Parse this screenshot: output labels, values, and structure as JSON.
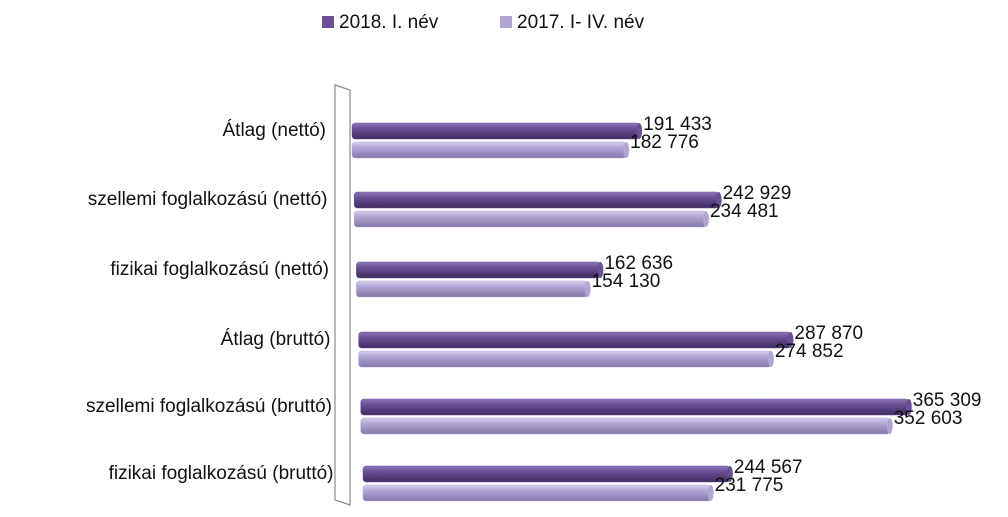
{
  "chart_data": {
    "type": "bar",
    "orientation": "horizontal",
    "categories": [
      "Átlag (nettó)",
      "szellemi foglalkozású (nettó)",
      "fizikai foglalkozású (nettó)",
      "Átlag (bruttó)",
      "szellemi foglalkozású (bruttó)",
      "fizikai foglalkozású (bruttó)"
    ],
    "series": [
      {
        "name": "2018. I. név",
        "color": "#6a4f96",
        "values": [
          191433,
          242929,
          162636,
          287870,
          365309,
          244567
        ],
        "value_labels": [
          "191 433",
          "242 929",
          "162 636",
          "287 870",
          "365 309",
          "244 567"
        ]
      },
      {
        "name": "2017. I- IV. név",
        "color": "#b2a5d3",
        "values": [
          182776,
          234481,
          154130,
          274852,
          352603,
          231775
        ],
        "value_labels": [
          "182 776",
          "234 481",
          "154 130",
          "274 852",
          "352 603",
          "231 775"
        ]
      }
    ],
    "legend": "top"
  }
}
